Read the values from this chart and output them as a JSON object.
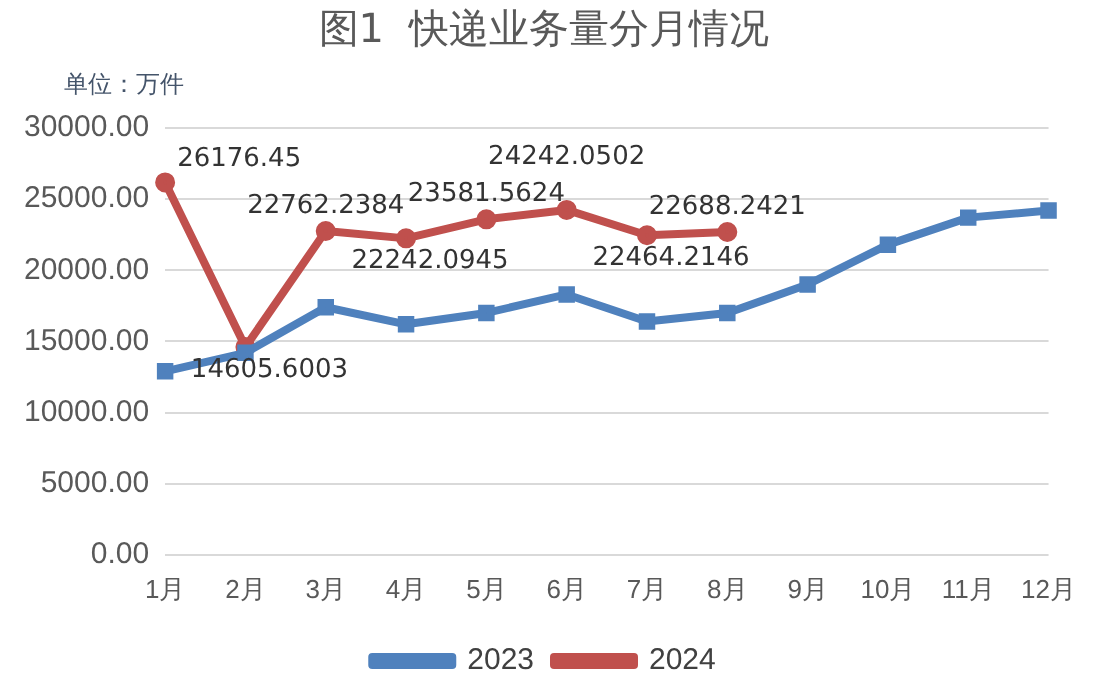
{
  "chart_data": {
    "type": "line",
    "title": "图1  快递业务量分月情况",
    "annotations": [
      "单位：万件"
    ],
    "categories": [
      "1月",
      "2月",
      "3月",
      "4月",
      "5月",
      "6月",
      "7月",
      "8月",
      "9月",
      "10月",
      "11月",
      "12月"
    ],
    "series": [
      {
        "name": "2023",
        "color": "#4f81bd",
        "marker": "square",
        "values": [
          12900,
          14200,
          17400,
          16200,
          17000,
          18300,
          16400,
          17000,
          19000,
          21800,
          23700,
          24200
        ]
      },
      {
        "name": "2024",
        "color": "#c0504d",
        "marker": "circle",
        "values": [
          26176.45,
          14605.6003,
          22762.2384,
          22242.0945,
          23581.5624,
          24242.0502,
          22464.2146,
          22688.2421,
          null,
          null,
          null,
          null
        ],
        "value_labels": [
          "26176.45",
          "14605.6003",
          "22762.2384",
          "22242.0945",
          "23581.5624",
          "24242.0502",
          "22464.2146",
          "22688.2421",
          null,
          null,
          null,
          null
        ]
      }
    ],
    "ylim": [
      0,
      30000
    ],
    "yticks": [
      {
        "value": 0,
        "label": "0.00"
      },
      {
        "value": 5000,
        "label": "5000.00"
      },
      {
        "value": 10000,
        "label": "10000.00"
      },
      {
        "value": 15000,
        "label": "15000.00"
      },
      {
        "value": 20000,
        "label": "20000.00"
      },
      {
        "value": 25000,
        "label": "25000.00"
      },
      {
        "value": 30000,
        "label": "30000.00"
      }
    ],
    "grid": "y",
    "legend": "bottom",
    "line_style": "solid"
  }
}
